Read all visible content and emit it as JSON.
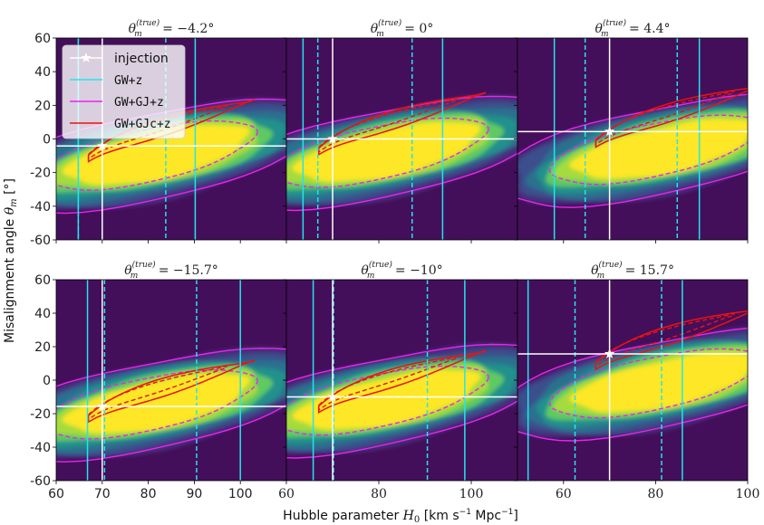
{
  "chart_data": {
    "type": "heatmap",
    "xlabel": "Hubble parameter H0 [km s⁻¹ Mpc⁻¹]",
    "xlabel_parts": {
      "pre": "Hubble parameter ",
      "sym": "H",
      "sub": "0",
      "post": " [km s",
      "sup1": "−1",
      "mid": " Mpc",
      "sup2": "−1",
      "end": "]"
    },
    "ylabel_parts": {
      "pre": "Misalignment angle ",
      "sym": "θ",
      "sub": "m",
      "post": " [°]"
    },
    "ylim": [
      -60,
      60
    ],
    "yticks": [
      "60",
      "40",
      "20",
      "0",
      "-20",
      "-40",
      "-60"
    ],
    "ytick_values": [
      60,
      40,
      20,
      0,
      -20,
      -40,
      -60
    ],
    "legend": {
      "placement": "top-left",
      "entries": [
        {
          "label": "injection",
          "color": "#ffffff",
          "marker": "star"
        },
        {
          "label": "GW+z",
          "color": "#22e5ee"
        },
        {
          "label": "GW+GJ+z",
          "color": "#ee22ee"
        },
        {
          "label": "GW+GJc+z",
          "color": "#ee1111"
        }
      ]
    },
    "colors": {
      "background": "#440f5a",
      "density_levels": [
        "#462f7c",
        "#3a4f8c",
        "#2c718e",
        "#21918c",
        "#5ec962",
        "#a6db3c",
        "#fde725"
      ],
      "injection": "#ffffff",
      "gw_z": "#22e5ee",
      "gw_gj_z": "#ee22ee",
      "gw_gjc_z": "#ee1111"
    },
    "panels": [
      {
        "title_value": "−4.2°",
        "theta_true": -4.2,
        "h0_true": 70,
        "xlim": [
          60,
          110
        ],
        "xticks": [],
        "row": 0,
        "col": 0,
        "gw_z_solid": [
          64.8,
          90.2
        ],
        "gw_z_dashed": [
          64.8,
          83.8
        ]
      },
      {
        "title_value": "0°",
        "theta_true": 0,
        "h0_true": 70,
        "xlim": [
          60,
          110
        ],
        "xticks": [],
        "row": 0,
        "col": 1,
        "gw_z_solid": [
          63.6,
          93.8
        ],
        "gw_z_dashed": [
          66.8,
          87.2
        ]
      },
      {
        "title_value": "4.4°",
        "theta_true": 4.4,
        "h0_true": 70,
        "xlim": [
          50,
          100
        ],
        "xticks": [],
        "row": 0,
        "col": 2,
        "gw_z_solid": [
          58.0,
          89.5
        ],
        "gw_z_dashed": [
          64.7,
          84.7
        ]
      },
      {
        "title_value": "−15.7°",
        "theta_true": -15.7,
        "h0_true": 70,
        "xlim": [
          60,
          110
        ],
        "xticks": [
          "60",
          "70",
          "80",
          "90",
          "100"
        ],
        "xtick_values": [
          60,
          70,
          80,
          90,
          100
        ],
        "row": 1,
        "col": 0,
        "gw_z_solid": [
          66.8,
          100.0
        ],
        "gw_z_dashed": [
          70.5,
          90.5
        ]
      },
      {
        "title_value": "−10°",
        "theta_true": -10,
        "h0_true": 70,
        "xlim": [
          60,
          110
        ],
        "xticks": [
          "60",
          "80",
          "100"
        ],
        "xtick_values": [
          60,
          80,
          100
        ],
        "row": 1,
        "col": 1,
        "gw_z_solid": [
          65.8,
          98.6
        ],
        "gw_z_dashed": [
          70.2,
          90.5
        ]
      },
      {
        "title_value": "15.7°",
        "theta_true": 15.7,
        "h0_true": 70,
        "xlim": [
          50,
          100
        ],
        "xticks": [
          "60",
          "80",
          "100"
        ],
        "xtick_values": [
          60,
          80,
          100
        ],
        "row": 1,
        "col": 2,
        "gw_z_solid": [
          52.3,
          85.8
        ],
        "gw_z_dashed": [
          62.5,
          81.3
        ]
      }
    ],
    "title_prefix": {
      "sym": "θ",
      "sub": "m",
      "sup": "(true)",
      "eq": " = "
    }
  }
}
